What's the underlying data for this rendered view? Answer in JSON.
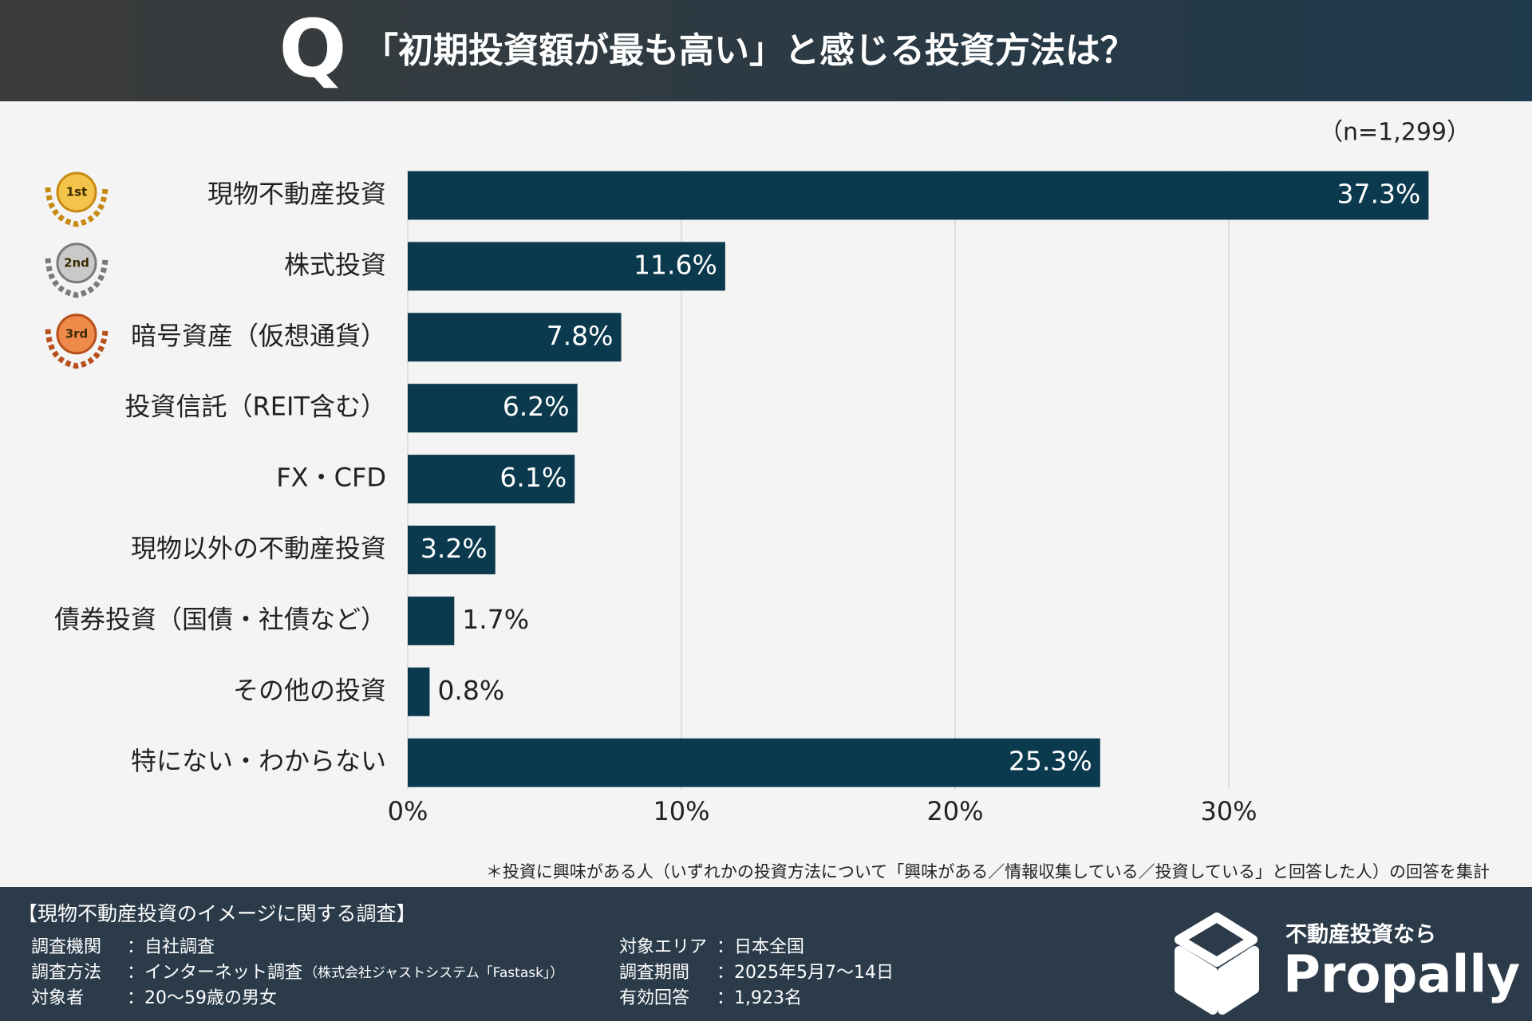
{
  "header": {
    "q": "Q",
    "title": "「初期投資額が最も高い」と感じる投資方法は？"
  },
  "chart_data": {
    "type": "bar",
    "orientation": "horizontal",
    "sample_size": "（n=1,299）",
    "categories": [
      "現物不動産投資",
      "株式投資",
      "暗号資産（仮想通貨）",
      "投資信託（REIT含む）",
      "FX・CFD",
      "現物以外の不動産投資",
      "債券投資（国債・社債など）",
      "その他の投資",
      "特にない・わからない"
    ],
    "values": [
      37.3,
      11.6,
      7.8,
      6.2,
      6.1,
      3.2,
      1.7,
      0.8,
      25.3
    ],
    "value_labels": [
      "37.3%",
      "11.6%",
      "7.8%",
      "6.2%",
      "6.1%",
      "3.2%",
      "1.7%",
      "0.8%",
      "25.3%"
    ],
    "medal_labels": [
      "1st",
      "2nd",
      "3rd"
    ],
    "color": "#0b3a4e",
    "xlim": [
      0,
      40
    ],
    "xticks": [
      {
        "value": 0,
        "label": "0%"
      },
      {
        "value": 10,
        "label": "10%"
      },
      {
        "value": 20,
        "label": "20%"
      },
      {
        "value": 30,
        "label": "30%"
      }
    ],
    "grid": true,
    "note": "＊投資に興味がある人（いずれかの投資方法について「興味がある／情報収集している／投資している」と回答した人）の回答を集計"
  },
  "footer": {
    "title": "【現物不動産投資のイメージに関する調査】",
    "left": [
      {
        "label": "調査機関",
        "value": "：自社調査",
        "note": ""
      },
      {
        "label": "調査方法",
        "value": "：インターネット調査",
        "note": "（株式会社ジャストシステム「Fastask」）"
      },
      {
        "label": "対象者",
        "value": "：20〜59歳の男女",
        "note": ""
      }
    ],
    "right": [
      {
        "label": "対象エリア",
        "value": "：日本全国"
      },
      {
        "label": "調査期間",
        "value": "：2025年5月7〜14日"
      },
      {
        "label": "有効回答",
        "value": "：1,923名"
      }
    ],
    "logo_tagline": "不動産投資なら",
    "logo_name": "Propally"
  }
}
